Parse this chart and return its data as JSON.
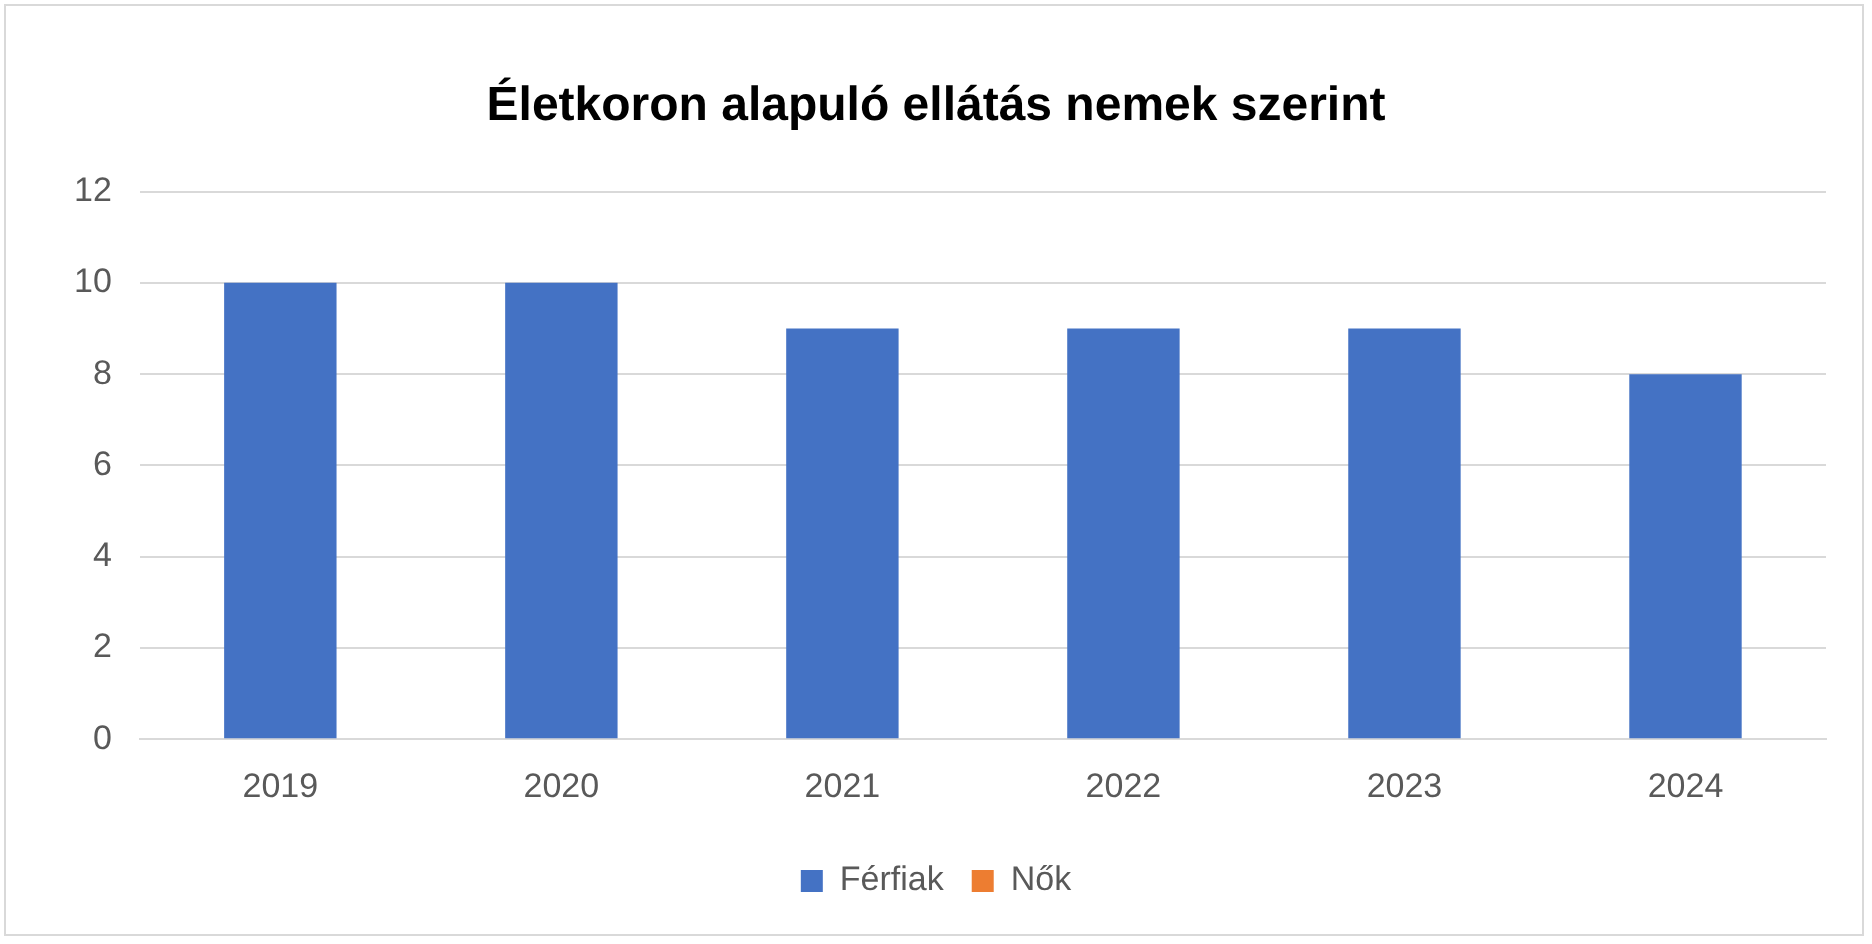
{
  "chart_data": {
    "type": "bar",
    "title": "Életkoron alapuló ellátás nemek szerint",
    "categories": [
      "2019",
      "2020",
      "2021",
      "2022",
      "2023",
      "2024"
    ],
    "series": [
      {
        "name": "Férfiak",
        "color": "#4472c4",
        "values": [
          10,
          10,
          9,
          9,
          9,
          8
        ]
      },
      {
        "name": "Nők",
        "color": "#ed7d31",
        "values": [
          null,
          null,
          null,
          null,
          null,
          null
        ]
      }
    ],
    "ylim": [
      0,
      12
    ],
    "yticks": [
      0,
      2,
      4,
      6,
      8,
      10,
      12
    ],
    "grid": "y",
    "legend": "bottom"
  }
}
